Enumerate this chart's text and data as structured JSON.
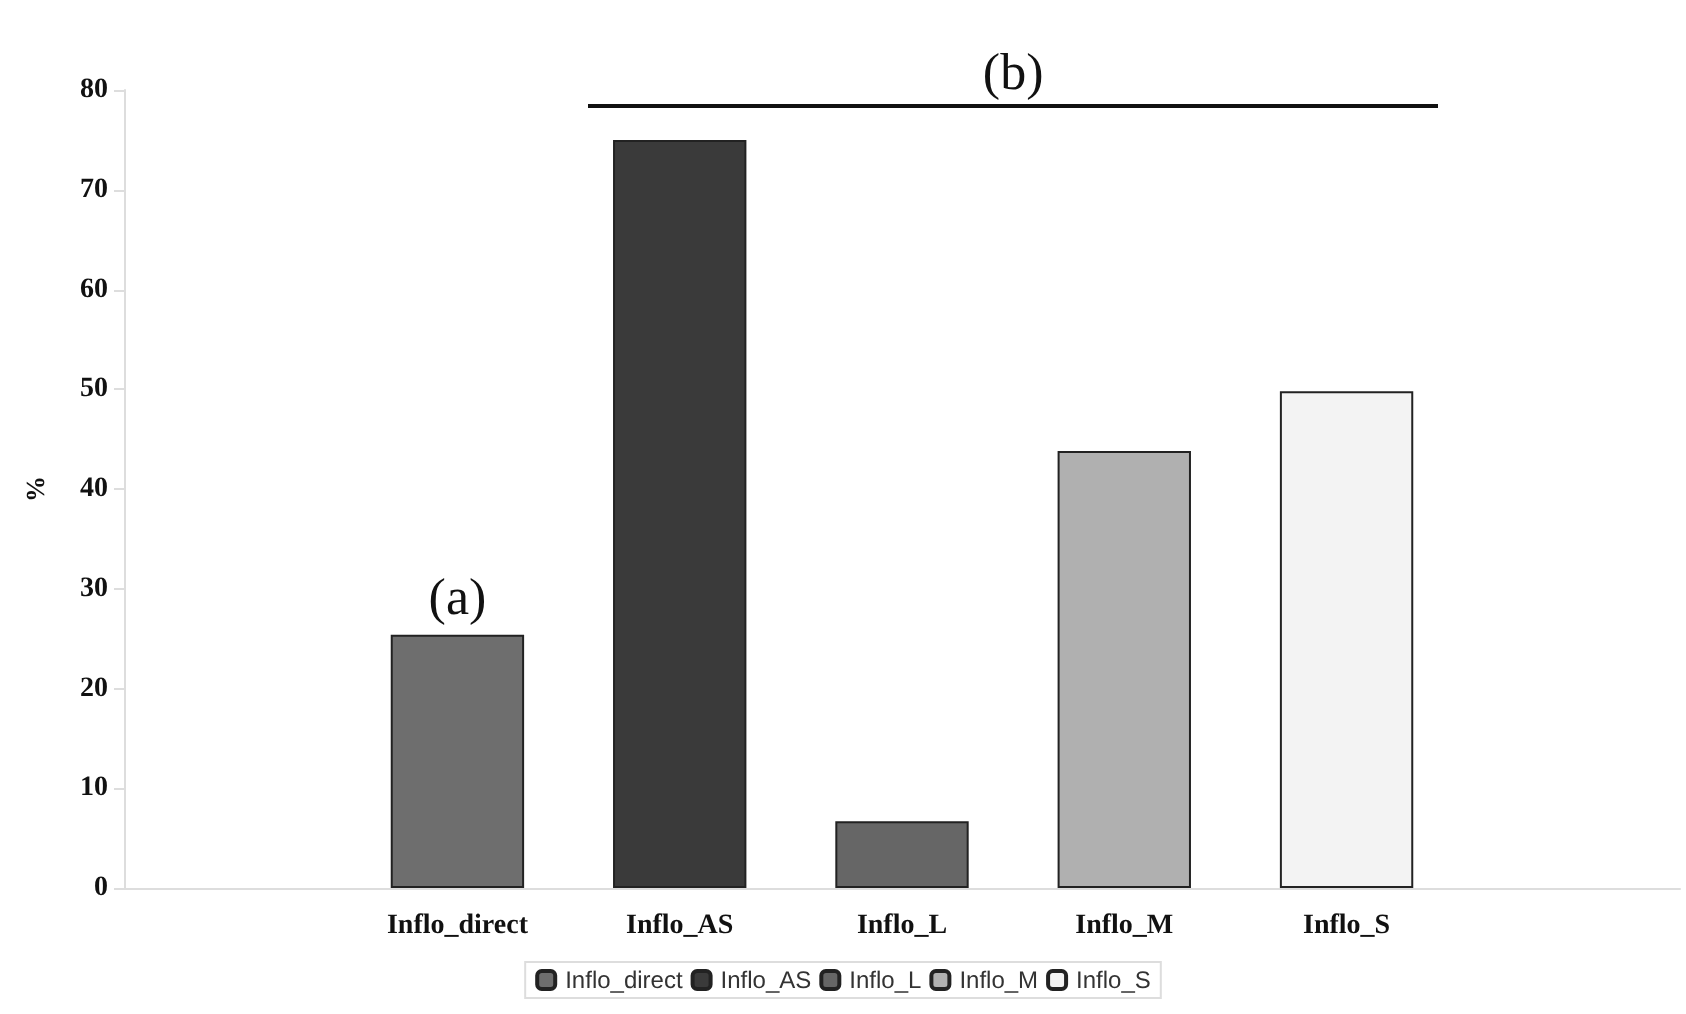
{
  "chart_data": {
    "type": "bar",
    "ylabel": "%",
    "categories": [
      null,
      "Inflo_direct",
      "Inflo_AS",
      "Inflo_L",
      "Inflo_M",
      "Inflo_S",
      null
    ],
    "series": [
      {
        "name": "Inflo_direct",
        "color": "#6e6e6e",
        "values": [
          null,
          25.4,
          null,
          null,
          null,
          null,
          null
        ]
      },
      {
        "name": "Inflo_AS",
        "color": "#3a3a3a",
        "values": [
          null,
          null,
          75,
          null,
          null,
          null,
          null
        ]
      },
      {
        "name": "Inflo_L",
        "color": "#666666",
        "values": [
          null,
          null,
          null,
          6.7,
          null,
          null,
          null
        ]
      },
      {
        "name": "Inflo_M",
        "color": "#b0b0b0",
        "values": [
          null,
          null,
          null,
          null,
          43.8,
          null,
          null
        ]
      },
      {
        "name": "Inflo_S",
        "color": "#f3f3f3",
        "values": [
          null,
          null,
          null,
          null,
          null,
          49.8,
          null
        ]
      }
    ],
    "ylim": [
      0,
      80
    ],
    "yticks": [
      0,
      10,
      20,
      30,
      40,
      50,
      60,
      70,
      80
    ],
    "grid": false,
    "legend": "bottom",
    "annotations": [
      "(a)",
      "(b)"
    ]
  }
}
